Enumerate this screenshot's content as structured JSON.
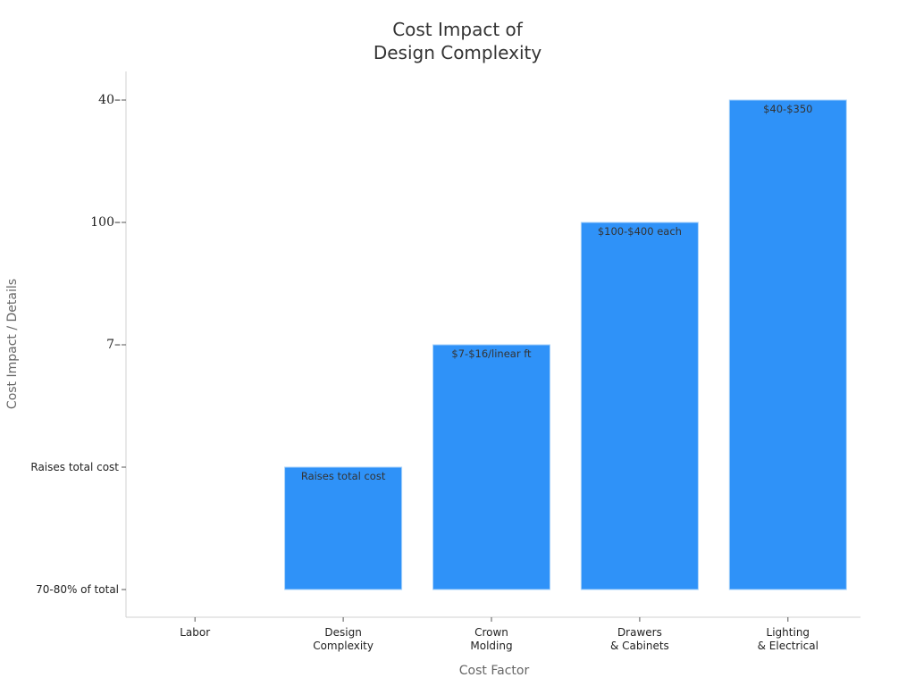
{
  "chart_data": {
    "type": "bar",
    "title": "Cost Impact of\nDesign Complexity",
    "xlabel": "Cost Factor",
    "ylabel": "Cost Impact / Details",
    "categories": [
      "Labor",
      "Design\nComplexity",
      "Crown\nMolding",
      "Drawers\n& Cabinets",
      "Lighting\n& Electrical"
    ],
    "y_categories": [
      "70-80% of total",
      "Raises total cost",
      "7",
      "100",
      "40"
    ],
    "values": [
      "70-80% of total",
      "Raises total cost",
      "7",
      "100",
      "40"
    ],
    "data_labels": [
      "",
      "Raises total cost",
      "$7-$16/linear ft",
      "$100-$400 each",
      "$40-$350"
    ],
    "y_scale": "categorical",
    "grid": false,
    "legend": "none",
    "bar_color": "#2f92f8",
    "bar_edge_color": "#a9d3fb"
  }
}
